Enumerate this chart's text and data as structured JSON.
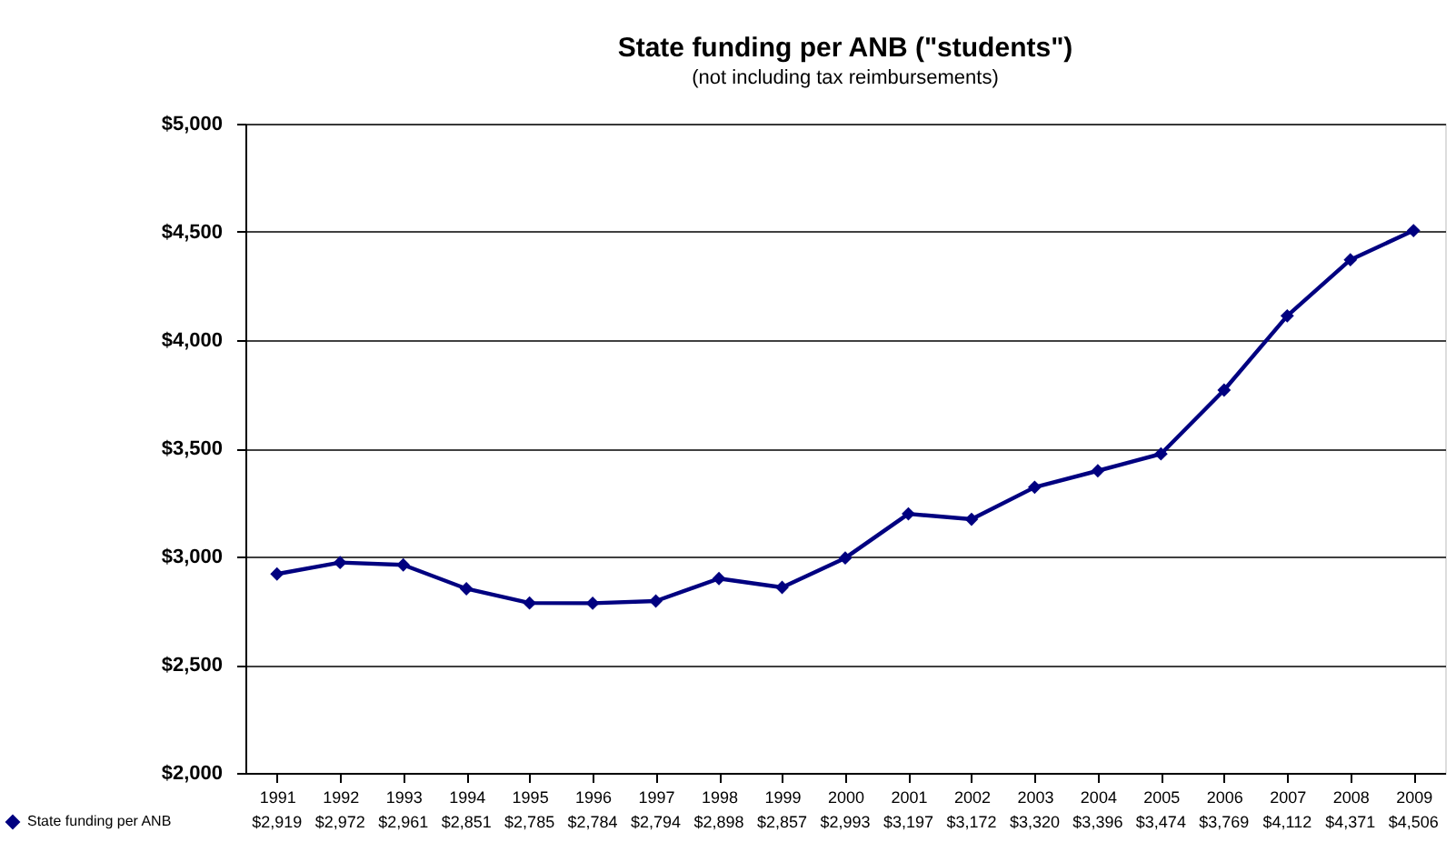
{
  "chart_data": {
    "type": "line",
    "title": "State funding per ANB (\"students\")",
    "subtitle": "(not including tax reimbursements)",
    "categories": [
      "1991",
      "1992",
      "1993",
      "1994",
      "1995",
      "1996",
      "1997",
      "1998",
      "1999",
      "2000",
      "2001",
      "2002",
      "2003",
      "2004",
      "2005",
      "2006",
      "2007",
      "2008",
      "2009"
    ],
    "series": [
      {
        "name": "State funding per ANB",
        "color": "#000080",
        "values": [
          2919,
          2972,
          2961,
          2851,
          2785,
          2784,
          2794,
          2898,
          2857,
          2993,
          3197,
          3172,
          3320,
          3396,
          3474,
          3769,
          4112,
          4371,
          4506
        ],
        "value_labels": [
          "$2,919",
          "$2,972",
          "$2,961",
          "$2,851",
          "$2,785",
          "$2,784",
          "$2,794",
          "$2,898",
          "$2,857",
          "$2,993",
          "$3,197",
          "$3,172",
          "$3,320",
          "$3,396",
          "$3,474",
          "$3,769",
          "$4,112",
          "$4,371",
          "$4,506"
        ]
      }
    ],
    "ylim": [
      2000,
      5000
    ],
    "yticks": [
      {
        "value": 2000,
        "label": "$2,000"
      },
      {
        "value": 2500,
        "label": "$2,500"
      },
      {
        "value": 3000,
        "label": "$3,000"
      },
      {
        "value": 3500,
        "label": "$3,500"
      },
      {
        "value": 4000,
        "label": "$4,000"
      },
      {
        "value": 4500,
        "label": "$4,500"
      },
      {
        "value": 5000,
        "label": "$5,000"
      }
    ],
    "grid": "y",
    "legend": "bottom left",
    "marker": "diamond",
    "line_style": "solid"
  }
}
